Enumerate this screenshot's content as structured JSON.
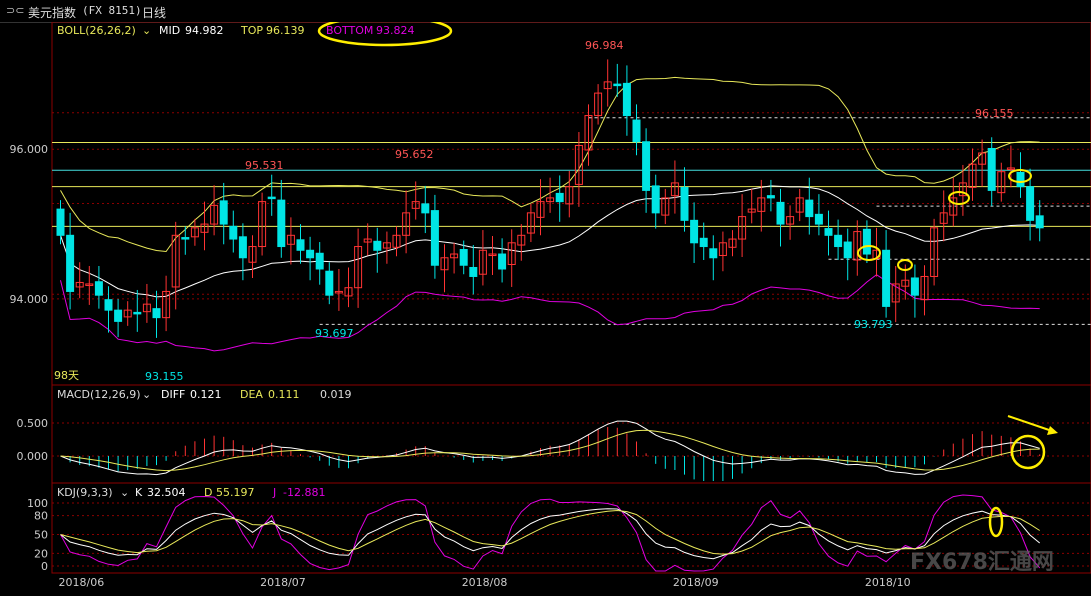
{
  "header": {
    "icon": "arrow-swap-icon",
    "icon_glyph": "⊃⊂",
    "title": "美元指数",
    "code": "(FX 8151)",
    "period": "日线"
  },
  "boll": {
    "label": "BOLL(26,26,2)",
    "mid_label": "MID",
    "mid": "94.982",
    "top_label": "TOP",
    "top": "96.139",
    "bottom_label": "BOTTOM",
    "bottom": "93.824"
  },
  "macd": {
    "label": "MACD(12,26,9)",
    "diff_label": "DIFF",
    "diff": "0.121",
    "dea_label": "DEA",
    "dea": "0.111",
    "macd": "0.019"
  },
  "kdj": {
    "label": "KDJ(9,3,3)",
    "k_label": "K",
    "k": "32.504",
    "d_label": "D",
    "d": "55.197",
    "j_label": "J",
    "j": "-12.881"
  },
  "annotations": {
    "high_1": "95.531",
    "high_2": "95.652",
    "peak": "96.984",
    "high_3": "96.155",
    "low_1": "93.155",
    "low_2": "93.697",
    "low_3": "93.793",
    "days_label": "98天"
  },
  "watermark": "FX678汇通网",
  "colors": {
    "up": "#ff3333",
    "down": "#00e5e5",
    "mid": "#ffffff",
    "band": "#e8e85a",
    "bottom_band": "#e000e0",
    "circle": "#ffee00",
    "grid": "#8b0000"
  },
  "chart_data": {
    "type": "candlestick",
    "price_axis": {
      "ticks": [
        96.0,
        94.0
      ],
      "tick_labels": [
        "96.000",
        "94.000"
      ],
      "range": [
        92.85,
        97.7
      ]
    },
    "macd_axis": {
      "ticks": [
        0.5,
        0.0
      ],
      "tick_labels": [
        "0.500",
        "0.000"
      ]
    },
    "kdj_axis": {
      "ticks": [
        100,
        80,
        50,
        20,
        0
      ],
      "tick_labels": [
        "100",
        "80",
        "50",
        "20",
        "0"
      ]
    },
    "x_labels": [
      "2018/06",
      "2018/07",
      "2018/08",
      "2018/09",
      "2018/10"
    ],
    "x_label_index": [
      0,
      21,
      42,
      64,
      84
    ],
    "horizontal_levels": [
      {
        "value": 96.09,
        "color": "#e8e85a"
      },
      {
        "value": 95.72,
        "color": "#44dddd"
      },
      {
        "value": 95.5,
        "color": "#e8e85a"
      },
      {
        "value": 94.97,
        "color": "#e8e85a"
      }
    ],
    "dashed_levels": [
      {
        "value": 96.42,
        "from_index": 55
      },
      {
        "value": 95.24,
        "from_index": 85
      },
      {
        "value": 94.53,
        "from_index": 80
      },
      {
        "value": 93.66,
        "from_index": 27
      }
    ],
    "closes": [
      94.85,
      94.1,
      94.22,
      94.2,
      94.05,
      93.85,
      93.7,
      93.85,
      93.8,
      93.93,
      93.75,
      94.1,
      94.85,
      94.8,
      94.95,
      95.0,
      95.25,
      95.0,
      94.8,
      94.55,
      94.7,
      95.3,
      95.35,
      94.7,
      94.85,
      94.65,
      94.55,
      94.4,
      94.05,
      94.1,
      94.15,
      94.7,
      94.8,
      94.65,
      94.75,
      94.85,
      95.15,
      95.3,
      95.15,
      94.45,
      94.55,
      94.6,
      94.45,
      94.3,
      94.65,
      94.6,
      94.4,
      94.75,
      94.85,
      95.15,
      95.3,
      95.35,
      95.3,
      95.5,
      96.05,
      96.45,
      96.75,
      96.9,
      96.85,
      96.45,
      96.1,
      95.45,
      95.15,
      95.35,
      95.55,
      95.05,
      94.75,
      94.7,
      94.55,
      94.75,
      94.8,
      95.1,
      95.2,
      95.35,
      95.35,
      95.0,
      95.1,
      95.35,
      95.1,
      95.0,
      94.85,
      94.7,
      94.55,
      94.9,
      94.6,
      94.65,
      93.9,
      94.2,
      94.25,
      94.05,
      94.3,
      94.95,
      95.15,
      95.35,
      95.55,
      95.8,
      95.95,
      95.45,
      95.7,
      95.75,
      95.5,
      95.05,
      94.95
    ]
  }
}
